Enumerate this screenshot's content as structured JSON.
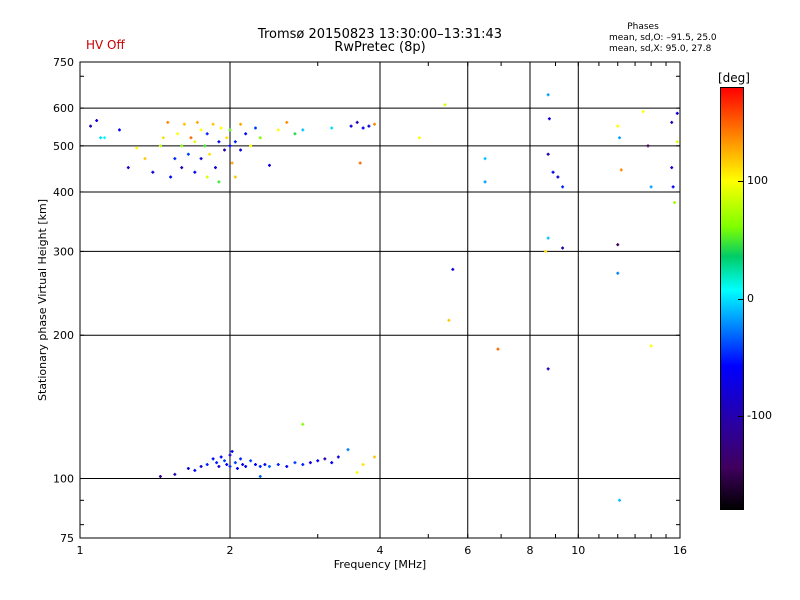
{
  "header": {
    "title_line1": "Tromsø 20150823 13:30:00–13:31:43",
    "title_line2": "RwPretec (8p)",
    "status": "HV Off",
    "stats_heading": "Phases",
    "stats_o": "mean, sd,O: –91.5, 25.0",
    "stats_x": "mean, sd,X: 95.0, 27.8"
  },
  "colorbar": {
    "unit": "[deg]",
    "ticks": [
      {
        "value": 100,
        "label": "100"
      },
      {
        "value": 0,
        "label": "0"
      },
      {
        "value": -100,
        "label": "-100"
      }
    ],
    "range": [
      -180,
      180
    ],
    "colors": [
      "#000000",
      "#400060",
      "#0000ff",
      "#0080ff",
      "#00ffff",
      "#00cc66",
      "#7fff00",
      "#ffff00",
      "#ff8c00",
      "#ff0000"
    ]
  },
  "chart_data": {
    "type": "scatter",
    "title": "Tromsø 20150823 13:30:00–13:31:43",
    "subtitle": "RwPretec (8p)",
    "xlabel": "Frequency [MHz]",
    "ylabel": "Stationary phase Virtual Height [km]",
    "xscale": "log",
    "yscale": "log",
    "xlim": [
      1,
      16
    ],
    "ylim": [
      75,
      750
    ],
    "xticks": [
      {
        "v": 1,
        "label": "1"
      },
      {
        "v": 2,
        "label": "2"
      },
      {
        "v": 4,
        "label": "4"
      },
      {
        "v": 6,
        "label": "6"
      },
      {
        "v": 8,
        "label": "8"
      },
      {
        "v": 10,
        "label": "10"
      },
      {
        "v": 16,
        "label": "16"
      }
    ],
    "xgrid": [
      2,
      4,
      6,
      8,
      10
    ],
    "yticks": [
      {
        "v": 75,
        "label": "75"
      },
      {
        "v": 100,
        "label": "100"
      },
      {
        "v": 200,
        "label": "200"
      },
      {
        "v": 300,
        "label": "300"
      },
      {
        "v": 400,
        "label": "400"
      },
      {
        "v": 500,
        "label": "500"
      },
      {
        "v": 600,
        "label": "600"
      },
      {
        "v": 750,
        "label": "750"
      }
    ],
    "ygrid": [
      100,
      200,
      300,
      400,
      500,
      600
    ],
    "grid": true,
    "points": [
      {
        "x": 1.05,
        "y": 550,
        "phase": -120
      },
      {
        "x": 1.08,
        "y": 565,
        "phase": -110
      },
      {
        "x": 1.1,
        "y": 520,
        "phase": -30
      },
      {
        "x": 1.12,
        "y": 520,
        "phase": -20
      },
      {
        "x": 1.2,
        "y": 540,
        "phase": -100
      },
      {
        "x": 1.25,
        "y": 450,
        "phase": -110
      },
      {
        "x": 1.3,
        "y": 495,
        "phase": 100
      },
      {
        "x": 1.35,
        "y": 470,
        "phase": 120
      },
      {
        "x": 1.4,
        "y": 440,
        "phase": -110
      },
      {
        "x": 1.45,
        "y": 500,
        "phase": 80
      },
      {
        "x": 1.47,
        "y": 520,
        "phase": 110
      },
      {
        "x": 1.5,
        "y": 560,
        "phase": 140
      },
      {
        "x": 1.52,
        "y": 430,
        "phase": -100
      },
      {
        "x": 1.55,
        "y": 470,
        "phase": -90
      },
      {
        "x": 1.57,
        "y": 530,
        "phase": 100
      },
      {
        "x": 1.6,
        "y": 500,
        "phase": 60
      },
      {
        "x": 1.6,
        "y": 450,
        "phase": -120
      },
      {
        "x": 1.62,
        "y": 555,
        "phase": 120
      },
      {
        "x": 1.65,
        "y": 480,
        "phase": -80
      },
      {
        "x": 1.67,
        "y": 520,
        "phase": 150
      },
      {
        "x": 1.7,
        "y": 440,
        "phase": -100
      },
      {
        "x": 1.7,
        "y": 510,
        "phase": 90
      },
      {
        "x": 1.72,
        "y": 560,
        "phase": 130
      },
      {
        "x": 1.75,
        "y": 470,
        "phase": -110
      },
      {
        "x": 1.75,
        "y": 540,
        "phase": 100
      },
      {
        "x": 1.78,
        "y": 500,
        "phase": 40
      },
      {
        "x": 1.8,
        "y": 430,
        "phase": 90
      },
      {
        "x": 1.8,
        "y": 530,
        "phase": -90
      },
      {
        "x": 1.82,
        "y": 480,
        "phase": 110
      },
      {
        "x": 1.85,
        "y": 555,
        "phase": 120
      },
      {
        "x": 1.87,
        "y": 450,
        "phase": -110
      },
      {
        "x": 1.9,
        "y": 510,
        "phase": -100
      },
      {
        "x": 1.9,
        "y": 420,
        "phase": 40
      },
      {
        "x": 1.92,
        "y": 545,
        "phase": 100
      },
      {
        "x": 1.95,
        "y": 490,
        "phase": -120
      },
      {
        "x": 1.97,
        "y": 520,
        "phase": 110
      },
      {
        "x": 2.0,
        "y": 500,
        "phase": -100
      },
      {
        "x": 2.0,
        "y": 540,
        "phase": 50
      },
      {
        "x": 2.02,
        "y": 460,
        "phase": 130
      },
      {
        "x": 2.05,
        "y": 510,
        "phase": -90
      },
      {
        "x": 2.05,
        "y": 430,
        "phase": 120
      },
      {
        "x": 2.1,
        "y": 490,
        "phase": -110
      },
      {
        "x": 2.1,
        "y": 555,
        "phase": 130
      },
      {
        "x": 2.15,
        "y": 530,
        "phase": -100
      },
      {
        "x": 2.2,
        "y": 500,
        "phase": 100
      },
      {
        "x": 2.25,
        "y": 545,
        "phase": -80
      },
      {
        "x": 2.3,
        "y": 520,
        "phase": 60
      },
      {
        "x": 2.4,
        "y": 455,
        "phase": -110
      },
      {
        "x": 2.5,
        "y": 540,
        "phase": 100
      },
      {
        "x": 2.6,
        "y": 560,
        "phase": 140
      },
      {
        "x": 2.7,
        "y": 530,
        "phase": 30
      },
      {
        "x": 2.8,
        "y": 540,
        "phase": -40
      },
      {
        "x": 3.2,
        "y": 545,
        "phase": -30
      },
      {
        "x": 3.5,
        "y": 550,
        "phase": -110
      },
      {
        "x": 3.6,
        "y": 560,
        "phase": -120
      },
      {
        "x": 3.7,
        "y": 545,
        "phase": -100
      },
      {
        "x": 3.8,
        "y": 550,
        "phase": -110
      },
      {
        "x": 3.9,
        "y": 555,
        "phase": 140
      },
      {
        "x": 3.65,
        "y": 460,
        "phase": 150
      },
      {
        "x": 4.8,
        "y": 520,
        "phase": 100
      },
      {
        "x": 5.4,
        "y": 610,
        "phase": 90
      },
      {
        "x": 5.6,
        "y": 275,
        "phase": -110
      },
      {
        "x": 5.5,
        "y": 215,
        "phase": 120
      },
      {
        "x": 6.5,
        "y": 470,
        "phase": -40
      },
      {
        "x": 6.5,
        "y": 420,
        "phase": -50
      },
      {
        "x": 6.9,
        "y": 187,
        "phase": 150
      },
      {
        "x": 8.7,
        "y": 640,
        "phase": -50
      },
      {
        "x": 8.75,
        "y": 570,
        "phase": -110
      },
      {
        "x": 8.7,
        "y": 480,
        "phase": -120
      },
      {
        "x": 8.9,
        "y": 440,
        "phase": -100
      },
      {
        "x": 9.1,
        "y": 430,
        "phase": -110
      },
      {
        "x": 9.3,
        "y": 410,
        "phase": -90
      },
      {
        "x": 8.7,
        "y": 320,
        "phase": -40
      },
      {
        "x": 8.6,
        "y": 300,
        "phase": 110
      },
      {
        "x": 9.3,
        "y": 305,
        "phase": -120
      },
      {
        "x": 8.7,
        "y": 170,
        "phase": -120
      },
      {
        "x": 12.0,
        "y": 550,
        "phase": 100
      },
      {
        "x": 12.1,
        "y": 520,
        "phase": -50
      },
      {
        "x": 12.2,
        "y": 445,
        "phase": 140
      },
      {
        "x": 12.0,
        "y": 310,
        "phase": -140
      },
      {
        "x": 12.0,
        "y": 270,
        "phase": -60
      },
      {
        "x": 12.1,
        "y": 90,
        "phase": -40
      },
      {
        "x": 13.5,
        "y": 590,
        "phase": 100
      },
      {
        "x": 13.8,
        "y": 500,
        "phase": -140
      },
      {
        "x": 14.0,
        "y": 410,
        "phase": -50
      },
      {
        "x": 14.0,
        "y": 190,
        "phase": 100
      },
      {
        "x": 15.4,
        "y": 560,
        "phase": -120
      },
      {
        "x": 15.4,
        "y": 450,
        "phase": -110
      },
      {
        "x": 15.5,
        "y": 410,
        "phase": -100
      },
      {
        "x": 15.6,
        "y": 380,
        "phase": 70
      },
      {
        "x": 15.8,
        "y": 585,
        "phase": -110
      },
      {
        "x": 15.8,
        "y": 510,
        "phase": 90
      },
      {
        "x": 1.55,
        "y": 102,
        "phase": -120
      },
      {
        "x": 1.65,
        "y": 105,
        "phase": -110
      },
      {
        "x": 1.7,
        "y": 104,
        "phase": -100
      },
      {
        "x": 1.75,
        "y": 106,
        "phase": -110
      },
      {
        "x": 1.8,
        "y": 107,
        "phase": -90
      },
      {
        "x": 1.85,
        "y": 110,
        "phase": -100
      },
      {
        "x": 1.88,
        "y": 108,
        "phase": -90
      },
      {
        "x": 1.9,
        "y": 106,
        "phase": -110
      },
      {
        "x": 1.92,
        "y": 111,
        "phase": -100
      },
      {
        "x": 1.95,
        "y": 109,
        "phase": -80
      },
      {
        "x": 1.97,
        "y": 107,
        "phase": -100
      },
      {
        "x": 2.0,
        "y": 112,
        "phase": -110
      },
      {
        "x": 2.0,
        "y": 106,
        "phase": -90
      },
      {
        "x": 2.02,
        "y": 114,
        "phase": -100
      },
      {
        "x": 2.05,
        "y": 108,
        "phase": -80
      },
      {
        "x": 2.07,
        "y": 105,
        "phase": -100
      },
      {
        "x": 2.1,
        "y": 110,
        "phase": -90
      },
      {
        "x": 2.12,
        "y": 107,
        "phase": -110
      },
      {
        "x": 2.15,
        "y": 106,
        "phase": -100
      },
      {
        "x": 2.2,
        "y": 109,
        "phase": -80
      },
      {
        "x": 2.25,
        "y": 107,
        "phase": -100
      },
      {
        "x": 2.3,
        "y": 106,
        "phase": -90
      },
      {
        "x": 2.35,
        "y": 107,
        "phase": -100
      },
      {
        "x": 2.4,
        "y": 106,
        "phase": -70
      },
      {
        "x": 2.5,
        "y": 107,
        "phase": -90
      },
      {
        "x": 2.6,
        "y": 106,
        "phase": -100
      },
      {
        "x": 2.7,
        "y": 108,
        "phase": -80
      },
      {
        "x": 2.8,
        "y": 107,
        "phase": -90
      },
      {
        "x": 2.9,
        "y": 108,
        "phase": -110
      },
      {
        "x": 3.0,
        "y": 109,
        "phase": -100
      },
      {
        "x": 3.1,
        "y": 110,
        "phase": -120
      },
      {
        "x": 3.2,
        "y": 108,
        "phase": -100
      },
      {
        "x": 3.3,
        "y": 111,
        "phase": -110
      },
      {
        "x": 3.45,
        "y": 115,
        "phase": -60
      },
      {
        "x": 2.3,
        "y": 101,
        "phase": -70
      },
      {
        "x": 1.45,
        "y": 101,
        "phase": -130
      },
      {
        "x": 2.8,
        "y": 130,
        "phase": 60
      },
      {
        "x": 3.6,
        "y": 103,
        "phase": 100
      },
      {
        "x": 3.7,
        "y": 107,
        "phase": 110
      },
      {
        "x": 3.9,
        "y": 111,
        "phase": 120
      }
    ]
  }
}
